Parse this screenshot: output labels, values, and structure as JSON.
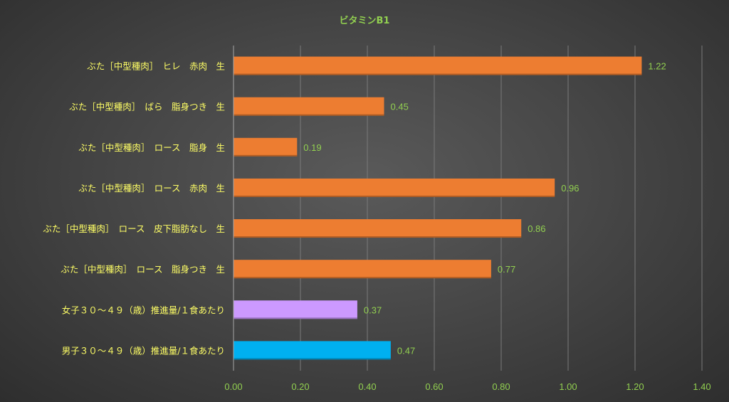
{
  "chart_data": {
    "type": "bar",
    "orientation": "horizontal",
    "title": "ビタミンB1",
    "categories": [
      "ぶた［中型種肉］　ヒレ　赤肉　生",
      "ぶた［中型種肉］　ばら　脂身つき　生",
      "ぶた［中型種肉］　ロース　脂身　生",
      "ぶた［中型種肉］　ロース　赤肉　生",
      "ぶた［中型種肉］　ロース　皮下脂肪なし　生",
      "ぶた［中型種肉］　ロース　脂身つき　生",
      "女子３０～４９（歳）推進量/１食あたり",
      "男子３０～４９（歳）推進量/１食あたり"
    ],
    "values": [
      1.22,
      0.45,
      0.19,
      0.96,
      0.86,
      0.77,
      0.37,
      0.47
    ],
    "value_labels": [
      "1.22",
      "0.45",
      "0.19",
      "0.96",
      "0.86",
      "0.77",
      "0.37",
      "0.47"
    ],
    "bar_colors": [
      "#ed7d31",
      "#ed7d31",
      "#ed7d31",
      "#ed7d31",
      "#ed7d31",
      "#ed7d31",
      "#cc99ff",
      "#00b0f0"
    ],
    "xlim": [
      0,
      1.4
    ],
    "x_ticks": [
      "0.00",
      "0.20",
      "0.40",
      "0.60",
      "0.80",
      "1.00",
      "1.20",
      "1.40"
    ],
    "grid": true,
    "legend": "none"
  },
  "colors": {
    "title": "#92d050",
    "category_label": "#ffff66",
    "tick_label": "#92d050",
    "data_label": "#92d050",
    "gridline": "#7a7a7a",
    "axis_line": "#a6a6a6"
  }
}
